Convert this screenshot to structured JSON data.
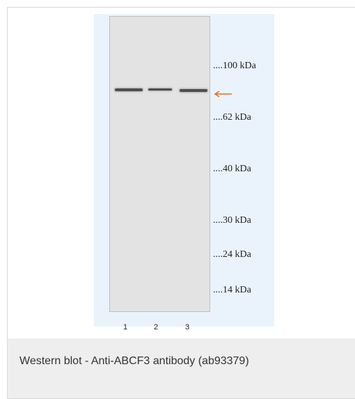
{
  "figure": {
    "markers": [
      "....100 kDa",
      "....62 kDa",
      "....40 kDa",
      "....30 kDa",
      "....24 kDa",
      "....14 kDa"
    ],
    "lane_labels": [
      "1",
      "2",
      "3"
    ],
    "arrow_color": "#e07020"
  },
  "caption": {
    "text": "Western blot - Anti-ABCF3 antibody (ab93379)"
  }
}
